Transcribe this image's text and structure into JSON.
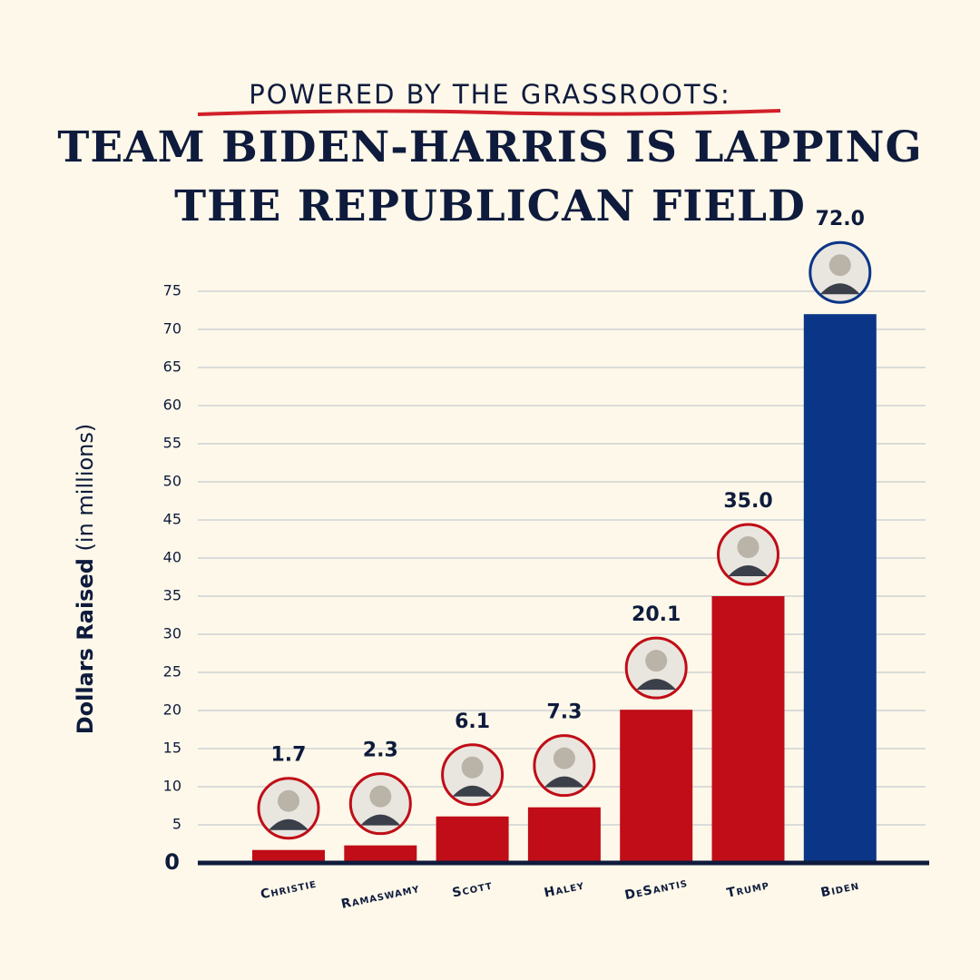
{
  "chart_data": {
    "type": "bar",
    "kicker": "POWERED BY THE GRASSROOTS:",
    "title_lines": [
      "TEAM BIDEN-HARRIS IS LAPPING",
      "THE REPUBLICAN FIELD"
    ],
    "y_label": {
      "bold": "Dollars Raised",
      "rest": "(in millions)"
    },
    "categories": [
      "Christie",
      "Ramaswamy",
      "Scott",
      "Haley",
      "DeSantis",
      "Trump",
      "Biden"
    ],
    "values": [
      1.7,
      2.3,
      6.1,
      7.3,
      20.1,
      35.0,
      72.0
    ],
    "value_labels": [
      "1.7",
      "2.3",
      "6.1",
      "7.3",
      "20.1",
      "35.0",
      "72.0"
    ],
    "colors": [
      "#c00d17",
      "#c00d17",
      "#c00d17",
      "#c00d17",
      "#c00d17",
      "#c00d17",
      "#0b3587"
    ],
    "ylim": [
      0,
      75
    ],
    "yticks": [
      0,
      5,
      10,
      15,
      20,
      25,
      30,
      35,
      40,
      45,
      50,
      55,
      60,
      65,
      70,
      75
    ],
    "grid": true
  }
}
